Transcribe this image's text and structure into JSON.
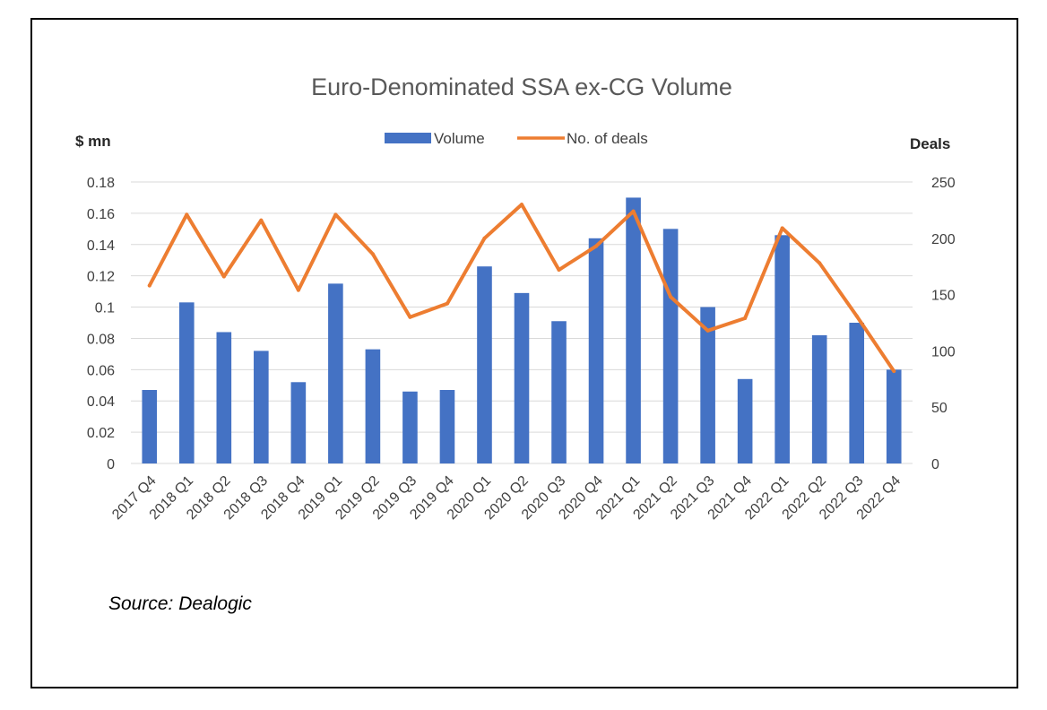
{
  "chart_data": {
    "type": "bar",
    "title": "Euro-Denominated SSA ex-CG Volume",
    "y_left_label": "$ mn",
    "y_right_label": "Deals",
    "categories": [
      "2017 Q4",
      "2018 Q1",
      "2018 Q2",
      "2018 Q3",
      "2018 Q4",
      "2019 Q1",
      "2019 Q2",
      "2019 Q3",
      "2019 Q4",
      "2020 Q1",
      "2020 Q2",
      "2020 Q3",
      "2020 Q4",
      "2021 Q1",
      "2021 Q2",
      "2021 Q3",
      "2021 Q4",
      "2022 Q1",
      "2022 Q2",
      "2022 Q3",
      "2022 Q4"
    ],
    "series": [
      {
        "name": "Volume",
        "type": "bar",
        "axis": "left",
        "color": "#4472C4",
        "values": [
          0.047,
          0.103,
          0.084,
          0.072,
          0.052,
          0.115,
          0.073,
          0.046,
          0.047,
          0.126,
          0.109,
          0.091,
          0.144,
          0.17,
          0.15,
          0.1,
          0.054,
          0.146,
          0.082,
          0.09,
          0.06
        ]
      },
      {
        "name": "No. of deals",
        "type": "line",
        "axis": "right",
        "color": "#ED7D31",
        "values": [
          158,
          221,
          166,
          216,
          154,
          221,
          186,
          130,
          142,
          200,
          230,
          172,
          193,
          224,
          148,
          118,
          129,
          209,
          178,
          131,
          82
        ]
      }
    ],
    "y_left": {
      "min": 0,
      "max": 0.18,
      "ticks": [
        "0",
        "0.02",
        "0.04",
        "0.06",
        "0.08",
        "0.1",
        "0.12",
        "0.14",
        "0.16",
        "0.18"
      ]
    },
    "y_right": {
      "min": 0,
      "max": 250,
      "ticks": [
        "0",
        "50",
        "100",
        "150",
        "200",
        "250"
      ]
    },
    "grid": true,
    "legend_position": "top"
  },
  "source": "Source: Dealogic"
}
